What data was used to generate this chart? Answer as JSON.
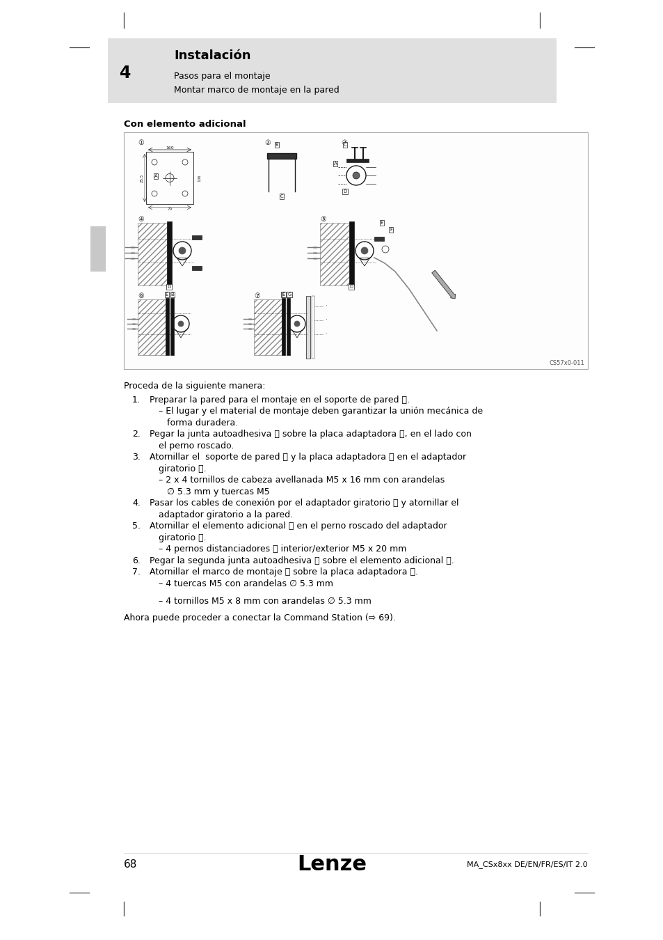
{
  "page_bg": "#ffffff",
  "header_bg": "#e0e0e0",
  "header_number": "4",
  "header_title": "Instalación",
  "header_sub1": "Pasos para el montaje",
  "header_sub2": "Montar marco de montaje en la pared",
  "section_title": "Con elemento adicional",
  "diagram_caption": "CS57x0-011",
  "body_lines": [
    {
      "type": "intro",
      "text": "Proceda de la siguiente manera:"
    },
    {
      "type": "numbered",
      "num": "1.",
      "indent": 37,
      "text": "Preparar la pared para el montaje en el soporte de pared Ⓐ."
    },
    {
      "type": "dash",
      "indent": 50,
      "text": "– El lugar y el material de montaje deben garantizar la unión mecánica de"
    },
    {
      "type": "cont",
      "indent": 62,
      "text": "forma duradera."
    },
    {
      "type": "numbered",
      "num": "2.",
      "indent": 37,
      "text": "Pegar la junta autoadhesiva Ⓑ sobre la placa adaptadora Ⓒ, en el lado con"
    },
    {
      "type": "cont",
      "indent": 50,
      "text": "el perno roscado."
    },
    {
      "type": "numbered",
      "num": "3.",
      "indent": 37,
      "text": "Atornillar el  soporte de pared Ⓐ y la placa adaptadora Ⓒ en el adaptador"
    },
    {
      "type": "cont",
      "indent": 50,
      "text": "giratorio Ⓓ."
    },
    {
      "type": "dash",
      "indent": 50,
      "text": "– 2 x 4 tornillos de cabeza avellanada M5 x 16 mm con arandelas"
    },
    {
      "type": "cont",
      "indent": 62,
      "text": "∅ 5.3 mm y tuercas M5"
    },
    {
      "type": "numbered",
      "num": "4.",
      "indent": 37,
      "text": "Pasar los cables de conexión por el adaptador giratorio Ⓓ y atornillar el"
    },
    {
      "type": "cont",
      "indent": 50,
      "text": "adaptador giratorio a la pared."
    },
    {
      "type": "numbered",
      "num": "5.",
      "indent": 37,
      "text": "Atornillar el elemento adicional Ⓔ en el perno roscado del adaptador"
    },
    {
      "type": "cont",
      "indent": 50,
      "text": "giratorio Ⓓ."
    },
    {
      "type": "dash",
      "indent": 50,
      "text": "– 4 pernos distanciadores Ⓕ interior/exterior M5 x 20 mm"
    },
    {
      "type": "numbered",
      "num": "6.",
      "indent": 37,
      "text": "Pegar la segunda junta autoadhesiva Ⓑ sobre el elemento adicional Ⓔ."
    },
    {
      "type": "numbered",
      "num": "7.",
      "indent": 37,
      "text": "Atornillar el marco de montaje Ⓖ sobre la placa adaptadora Ⓔ."
    },
    {
      "type": "dash",
      "indent": 50,
      "text": "– 4 tuercas M5 con arandelas ∅ 5.3 mm"
    },
    {
      "type": "blank"
    },
    {
      "type": "dash",
      "indent": 50,
      "text": "– 4 tornillos M5 x 8 mm con arandelas ∅ 5.3 mm"
    },
    {
      "type": "blank"
    },
    {
      "type": "final",
      "indent": 0,
      "text": "Ahora puede proceder a conectar la Command Station (⇨ 69)."
    }
  ],
  "footer_page": "68",
  "footer_logo": "Lenze",
  "footer_doc": "MA_CSx8xx DE/EN/FR/ES/IT 2.0"
}
